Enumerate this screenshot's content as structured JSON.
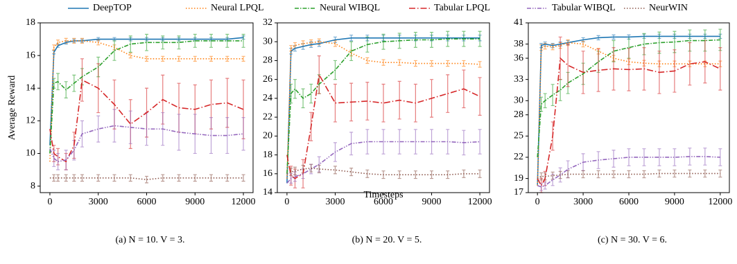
{
  "chart_data": [
    {
      "type": "line",
      "caption": "(a) N = 10. V = 3.",
      "ylabel": "Average Reward",
      "xlim": [
        -600,
        12600
      ],
      "xticks": [
        0,
        3000,
        6000,
        9000,
        12000
      ],
      "ylim": [
        7.6,
        18
      ],
      "yticks": [
        8,
        10,
        12,
        14,
        16,
        18
      ],
      "x": [
        0,
        250,
        500,
        1000,
        1500,
        2000,
        3000,
        4000,
        5000,
        6000,
        7000,
        8000,
        9000,
        10000,
        11000,
        12000
      ],
      "series": [
        {
          "name": "DeepTOP",
          "color": "#1f77b4",
          "linestyle": "solid",
          "values": [
            10.5,
            16.2,
            16.6,
            16.8,
            16.9,
            16.9,
            17.0,
            17.0,
            17.0,
            17.0,
            17.0,
            17.0,
            17.0,
            17.0,
            17.0,
            17.1
          ],
          "errors": [
            null,
            0.1,
            0.1,
            0.1,
            0.1,
            0.1,
            0.1,
            0.1,
            0.1,
            0.1,
            0.1,
            0.1,
            0.1,
            0.1,
            0.1,
            0.1
          ]
        },
        {
          "name": "Neural LPQL",
          "color": "#ff7f0e",
          "linestyle": "dotted",
          "values": [
            9.5,
            16.5,
            16.8,
            16.9,
            16.9,
            16.9,
            16.8,
            16.5,
            16.0,
            15.8,
            15.8,
            15.8,
            15.8,
            15.8,
            15.8,
            15.8
          ],
          "errors": [
            null,
            0.15,
            0.15,
            0.15,
            0.15,
            0.15,
            0.15,
            0.15,
            0.15,
            0.15,
            0.15,
            0.15,
            0.15,
            0.15,
            0.15,
            0.15
          ]
        },
        {
          "name": "Neural WIBQL",
          "color": "#2ca02c",
          "linestyle": "dashdot",
          "values": [
            10.0,
            14.3,
            14.4,
            13.9,
            14.3,
            14.7,
            15.3,
            16.3,
            16.7,
            16.8,
            16.8,
            16.8,
            16.9,
            16.9,
            16.9,
            16.9
          ],
          "errors": [
            null,
            0.3,
            0.5,
            0.5,
            0.5,
            0.5,
            0.6,
            0.6,
            0.5,
            0.5,
            0.4,
            0.4,
            0.4,
            0.4,
            0.4,
            0.4
          ]
        },
        {
          "name": "Tabular LPQL",
          "color": "#d62728",
          "linestyle": "longdashdot",
          "values": [
            11.5,
            10.0,
            9.8,
            9.5,
            10.5,
            14.5,
            14.0,
            13.0,
            11.8,
            12.5,
            13.3,
            12.8,
            12.7,
            13.0,
            13.1,
            12.7
          ],
          "errors": [
            null,
            0.5,
            0.5,
            0.5,
            0.8,
            1.3,
            1.5,
            1.5,
            1.5,
            1.5,
            1.5,
            1.5,
            1.5,
            1.5,
            1.5,
            1.8
          ]
        },
        {
          "name": "Tabular WIBQL",
          "color": "#9467bd",
          "linestyle": "dashdotdot",
          "values": [
            10.3,
            9.7,
            9.5,
            9.6,
            10.2,
            11.2,
            11.5,
            11.7,
            11.6,
            11.5,
            11.5,
            11.3,
            11.2,
            11.1,
            11.1,
            11.2
          ],
          "errors": [
            null,
            0.5,
            0.5,
            0.6,
            0.6,
            0.8,
            0.8,
            1.0,
            1.0,
            1.0,
            1.0,
            1.1,
            1.2,
            1.1,
            1.1,
            1.0
          ]
        },
        {
          "name": "NeurWIN",
          "color": "#8c564b",
          "linestyle": "dotted",
          "values": [
            8.5,
            8.5,
            8.5,
            8.5,
            8.5,
            8.5,
            8.5,
            8.5,
            8.5,
            8.4,
            8.5,
            8.5,
            8.5,
            8.5,
            8.5,
            8.5
          ],
          "errors": [
            null,
            0.2,
            0.2,
            0.2,
            0.2,
            0.2,
            0.2,
            0.2,
            0.2,
            0.2,
            0.2,
            0.2,
            0.2,
            0.2,
            0.2,
            0.2
          ]
        }
      ]
    },
    {
      "type": "line",
      "caption": "(b) N = 20. V = 5.",
      "xlabel": "Timesteps",
      "xlim": [
        -600,
        12600
      ],
      "xticks": [
        0,
        3000,
        6000,
        9000,
        12000
      ],
      "ylim": [
        14,
        32
      ],
      "yticks": [
        14,
        16,
        18,
        20,
        22,
        24,
        26,
        28,
        30,
        32
      ],
      "x": [
        0,
        250,
        500,
        1000,
        1500,
        2000,
        3000,
        4000,
        5000,
        6000,
        7000,
        8000,
        9000,
        10000,
        11000,
        12000
      ],
      "series": [
        {
          "color": "#1f77b4",
          "linestyle": "solid",
          "values": [
            15,
            29,
            29.3,
            29.5,
            29.7,
            29.8,
            30.2,
            30.4,
            30.4,
            30.4,
            30.4,
            30.4,
            30.4,
            30.4,
            30.4,
            30.4
          ],
          "errors": [
            null,
            0.3,
            0.3,
            0.3,
            0.3,
            0.3,
            0.3,
            0.3,
            0.3,
            0.3,
            0.3,
            0.3,
            0.3,
            0.3,
            0.3,
            0.3
          ]
        },
        {
          "color": "#ff7f0e",
          "linestyle": "dotted",
          "values": [
            15.5,
            29.3,
            29.6,
            29.8,
            29.9,
            30.0,
            29.8,
            28.8,
            28.0,
            27.8,
            27.8,
            27.7,
            27.7,
            27.7,
            27.7,
            27.6
          ],
          "errors": [
            null,
            0.3,
            0.3,
            0.3,
            0.3,
            0.3,
            0.3,
            0.3,
            0.3,
            0.3,
            0.3,
            0.3,
            0.3,
            0.3,
            0.3,
            0.3
          ]
        },
        {
          "color": "#2ca02c",
          "linestyle": "dashdot",
          "values": [
            16,
            24.5,
            25,
            24,
            24.5,
            25.5,
            27,
            29,
            29.7,
            30,
            30.1,
            30.2,
            30.2,
            30.3,
            30.3,
            30.3
          ],
          "errors": [
            null,
            1,
            1,
            1,
            1,
            1,
            1,
            1,
            0.8,
            0.8,
            0.8,
            0.8,
            0.8,
            0.8,
            0.8,
            0.8
          ]
        },
        {
          "color": "#d62728",
          "linestyle": "longdashdot",
          "values": [
            18,
            15.8,
            15.5,
            16,
            21,
            26.5,
            23.5,
            23.6,
            23.7,
            23.5,
            23.8,
            23.5,
            24,
            24.5,
            25,
            24.2
          ],
          "errors": [
            null,
            1,
            1,
            1.5,
            1.5,
            2,
            2,
            2,
            2,
            2,
            2,
            2,
            2,
            2,
            2,
            2
          ]
        },
        {
          "color": "#9467bd",
          "linestyle": "dashdotdot",
          "values": [
            15,
            15.5,
            15.7,
            16,
            16.5,
            17,
            18.3,
            19.2,
            19.4,
            19.4,
            19.4,
            19.4,
            19.4,
            19.4,
            19.3,
            19.4
          ],
          "errors": [
            null,
            0.5,
            0.5,
            0.5,
            0.5,
            0.8,
            1,
            1.2,
            1.3,
            1.3,
            1.3,
            1.3,
            1.3,
            1.3,
            1.3,
            1.3
          ]
        },
        {
          "color": "#8c564b",
          "linestyle": "dotted",
          "values": [
            16,
            16.2,
            16.3,
            16.5,
            16.6,
            16.5,
            16.4,
            16.2,
            16.0,
            15.9,
            15.9,
            15.9,
            15.9,
            15.9,
            16.0,
            16.0
          ],
          "errors": [
            null,
            0.4,
            0.4,
            0.4,
            0.4,
            0.4,
            0.4,
            0.4,
            0.4,
            0.4,
            0.4,
            0.4,
            0.4,
            0.4,
            0.4,
            0.4
          ]
        }
      ]
    },
    {
      "type": "line",
      "caption": "(c) N = 30. V = 6.",
      "xlim": [
        -600,
        12600
      ],
      "xticks": [
        0,
        3000,
        6000,
        9000,
        12000
      ],
      "ylim": [
        17,
        41
      ],
      "yticks": [
        17,
        19,
        22,
        25,
        28,
        30,
        33,
        36,
        38,
        41
      ],
      "x": [
        0,
        250,
        500,
        1000,
        1500,
        2000,
        3000,
        4000,
        5000,
        6000,
        7000,
        8000,
        9000,
        10000,
        11000,
        12000
      ],
      "series": [
        {
          "color": "#1f77b4",
          "linestyle": "solid",
          "values": [
            18,
            37.8,
            38,
            37.8,
            38,
            38.2,
            38.6,
            38.9,
            39,
            39.0,
            39.1,
            39.1,
            39.1,
            39.1,
            39.1,
            39.1
          ],
          "errors": [
            null,
            0.3,
            0.3,
            0.3,
            0.3,
            0.3,
            0.3,
            0.3,
            0.3,
            0.3,
            0.3,
            0.3,
            0.3,
            0.3,
            0.3,
            0.3
          ]
        },
        {
          "color": "#ff7f0e",
          "linestyle": "dotted",
          "values": [
            18,
            37.5,
            37.7,
            37.6,
            37.8,
            38.2,
            38.0,
            37.0,
            36.0,
            35.5,
            35.3,
            35.2,
            35.2,
            35.2,
            35.2,
            35.2
          ],
          "errors": [
            null,
            0.4,
            0.4,
            0.4,
            0.4,
            0.4,
            0.4,
            0.4,
            0.4,
            0.4,
            0.4,
            0.4,
            0.4,
            0.4,
            0.4,
            0.4
          ]
        },
        {
          "color": "#2ca02c",
          "linestyle": "dashdot",
          "values": [
            22,
            29.5,
            30,
            30.8,
            31.5,
            32.5,
            33.8,
            35.5,
            37,
            37.5,
            38,
            38.2,
            38.3,
            38.5,
            38.5,
            38.6
          ],
          "errors": [
            null,
            1,
            1,
            1.5,
            1.5,
            1.5,
            1.5,
            1.5,
            1.5,
            1.5,
            1.5,
            1.5,
            1.5,
            1.5,
            1.5,
            1.5
          ]
        },
        {
          "color": "#d62728",
          "linestyle": "longdashdot",
          "values": [
            19,
            18,
            19,
            25,
            36,
            35,
            34,
            34.3,
            34.5,
            34.4,
            34.5,
            34,
            34.2,
            35.2,
            35.5,
            34.5
          ],
          "errors": [
            null,
            1,
            1,
            2,
            3,
            3,
            3,
            3,
            3,
            3,
            3,
            3,
            3,
            3,
            3,
            3
          ]
        },
        {
          "color": "#9467bd",
          "linestyle": "dashdotdot",
          "values": [
            18,
            17.8,
            18,
            18.8,
            19.5,
            20.3,
            21.3,
            21.6,
            21.8,
            22,
            22,
            22,
            22,
            22.1,
            22.1,
            22
          ],
          "errors": [
            null,
            0.5,
            0.5,
            0.8,
            1,
            1.2,
            1.2,
            1.2,
            1.2,
            1.2,
            1.2,
            1.2,
            1.2,
            1.2,
            1.2,
            1.2
          ]
        },
        {
          "color": "#8c564b",
          "linestyle": "dotted",
          "values": [
            19,
            19.3,
            19.3,
            19.4,
            19.5,
            19.6,
            19.6,
            19.6,
            19.6,
            19.6,
            19.6,
            19.7,
            19.7,
            19.7,
            19.7,
            19.7
          ],
          "errors": [
            null,
            0.5,
            0.5,
            0.5,
            0.5,
            0.5,
            0.5,
            0.5,
            0.5,
            0.5,
            0.5,
            0.5,
            0.5,
            0.5,
            0.5,
            0.5
          ]
        }
      ]
    }
  ]
}
